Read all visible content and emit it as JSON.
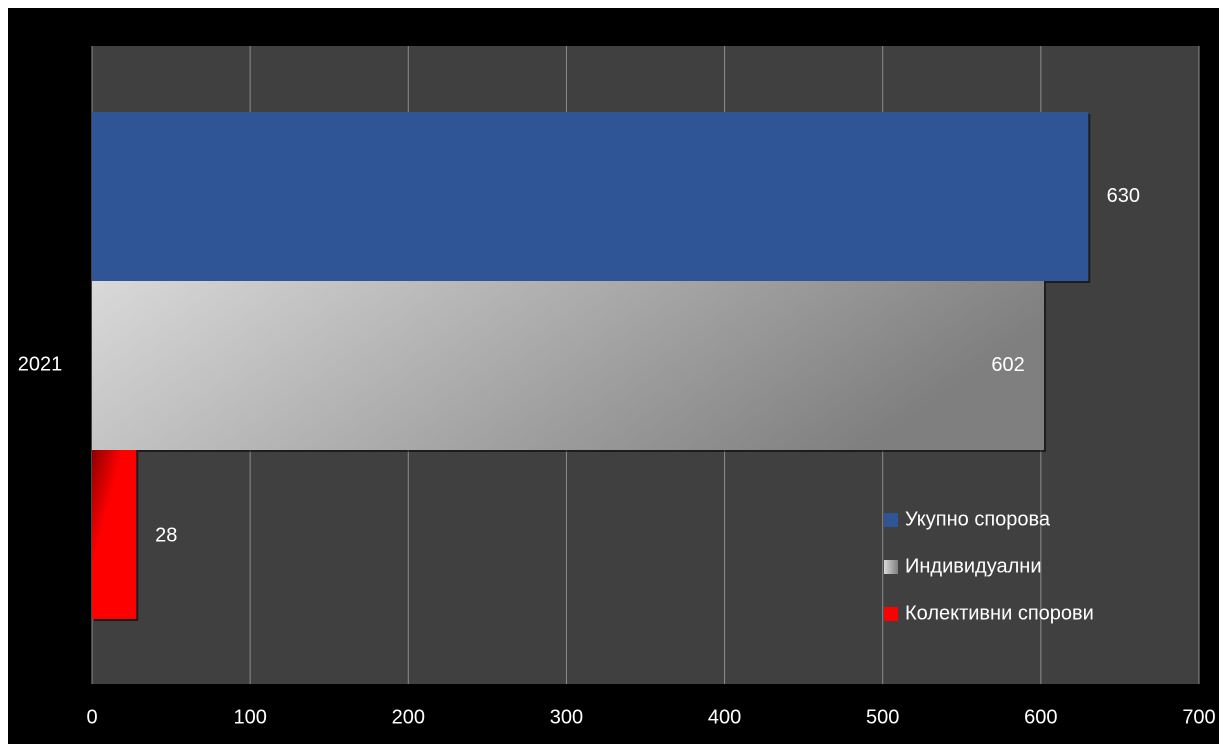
{
  "chart_data": {
    "type": "bar",
    "orientation": "horizontal",
    "categories": [
      "2021"
    ],
    "series": [
      {
        "name": "Укупно спорова",
        "values": [
          630
        ],
        "color": "#2F5597"
      },
      {
        "name": "Индивидуални",
        "values": [
          602
        ],
        "color": "#A6A6A6"
      },
      {
        "name": "Колективни спорови",
        "values": [
          28
        ],
        "color": "#E00000"
      }
    ],
    "data_labels": [
      "630",
      "602",
      "28"
    ],
    "xlim": [
      0,
      700
    ],
    "x_ticks": [
      "0",
      "100",
      "200",
      "300",
      "400",
      "500",
      "600",
      "700"
    ],
    "grid": true,
    "legend_position": "bottom-right",
    "title": "",
    "xlabel": "",
    "ylabel": "",
    "plot_background": "#404040",
    "frame_background": "#000000",
    "text_color": "#FFFFFF"
  }
}
